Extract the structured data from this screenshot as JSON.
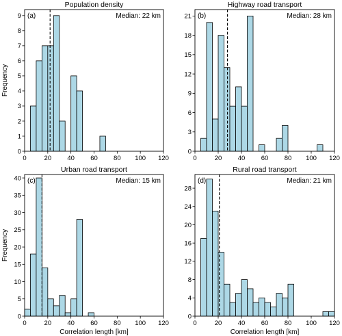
{
  "figure": {
    "bar_color": "#add8e6",
    "bar_edge": "#000000",
    "median_line_color": "#000000",
    "ylabel": "Frequency",
    "xlabel": "Correlation length [km]"
  },
  "chart_data": [
    {
      "type": "bar",
      "panel": "(a)",
      "title": "Population density",
      "median_label": "Median: 22 km",
      "median": 22,
      "bin_width": 5,
      "bin_starts": [
        5,
        10,
        15,
        20,
        25,
        30,
        35,
        40,
        45,
        50,
        55,
        60,
        65
      ],
      "values": [
        3,
        6,
        7,
        7,
        9,
        2,
        0,
        5,
        4,
        0,
        0,
        0,
        1
      ],
      "xlim": [
        0,
        120
      ],
      "ylim": [
        0,
        9.4
      ],
      "xticks": [
        0,
        20,
        40,
        60,
        80,
        100,
        120
      ],
      "yticks": [
        0,
        1,
        2,
        3,
        4,
        5,
        6,
        7,
        8,
        9
      ],
      "xlabel": "",
      "ylabel": "Frequency"
    },
    {
      "type": "bar",
      "panel": "(b)",
      "title": "Highway road transport",
      "median_label": "Median: 28 km",
      "median": 28,
      "bin_width": 5,
      "bin_starts": [
        5,
        10,
        15,
        20,
        25,
        30,
        35,
        40,
        45,
        50,
        55,
        60,
        65,
        70,
        75,
        80,
        85,
        90,
        95,
        100,
        105
      ],
      "values": [
        2,
        20,
        5,
        18,
        13,
        7,
        10,
        7,
        21,
        0,
        1,
        0,
        0,
        2,
        4,
        0,
        0,
        0,
        0,
        0,
        1
      ],
      "xlim": [
        0,
        120
      ],
      "ylim": [
        0,
        22
      ],
      "xticks": [
        0,
        20,
        40,
        60,
        80,
        100,
        120
      ],
      "yticks": [
        0,
        3,
        6,
        9,
        12,
        15,
        18,
        21
      ],
      "xlabel": "",
      "ylabel": ""
    },
    {
      "type": "bar",
      "panel": "(c)",
      "title": "Urban road transport",
      "median_label": "Median: 15 km",
      "median": 15,
      "bin_width": 5,
      "bin_starts": [
        0,
        5,
        10,
        15,
        20,
        25,
        30,
        35,
        40,
        45,
        50,
        55
      ],
      "values": [
        2,
        18,
        40,
        14,
        5,
        3,
        6,
        1,
        5,
        28,
        0,
        1
      ],
      "xlim": [
        0,
        120
      ],
      "ylim": [
        0,
        41
      ],
      "xticks": [
        0,
        20,
        40,
        60,
        80,
        100,
        120
      ],
      "yticks": [
        0,
        5,
        10,
        15,
        20,
        25,
        30,
        35,
        40
      ],
      "xlabel": "Correlation length [km]",
      "ylabel": "Frequency"
    },
    {
      "type": "bar",
      "panel": "(d)",
      "title": "Rural road transport",
      "median_label": "Median: 21 km",
      "median": 21,
      "bin_width": 5,
      "bin_starts": [
        5,
        10,
        15,
        20,
        25,
        30,
        35,
        40,
        45,
        50,
        55,
        60,
        65,
        70,
        75,
        80,
        85,
        90,
        95,
        100,
        105,
        110,
        115
      ],
      "values": [
        17,
        30,
        23,
        14,
        7,
        3,
        5,
        8,
        6,
        3,
        4,
        3,
        2,
        5,
        4,
        7,
        0,
        0,
        0,
        0,
        0,
        1,
        1
      ],
      "xlim": [
        0,
        120
      ],
      "ylim": [
        0,
        31
      ],
      "xticks": [
        0,
        20,
        40,
        60,
        80,
        100,
        120
      ],
      "yticks": [
        0,
        4,
        8,
        12,
        16,
        20,
        24,
        28
      ],
      "xlabel": "Correlation length [km]",
      "ylabel": ""
    }
  ]
}
